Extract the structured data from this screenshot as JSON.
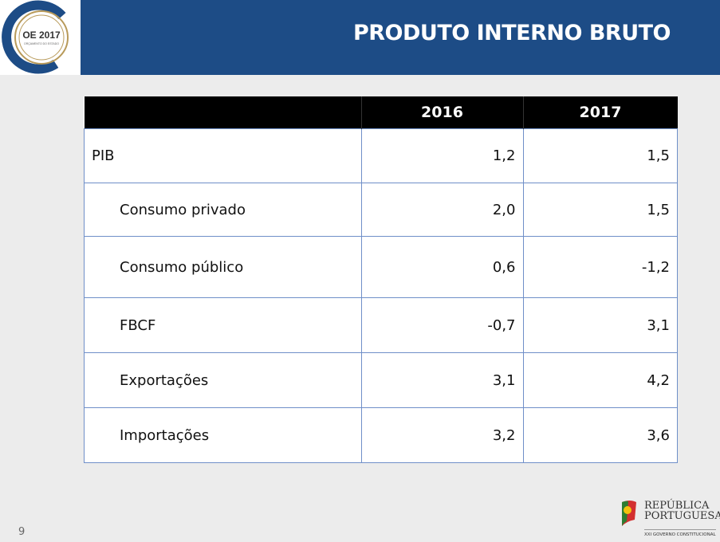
{
  "header": {
    "title": "PRODUTO INTERNO BRUTO"
  },
  "logo": {
    "text": "OE 2017",
    "subtitle": "ORÇAMENTO DO ESTADO"
  },
  "table": {
    "columns": [
      "",
      "2016",
      "2017"
    ],
    "rows": [
      {
        "label": "PIB",
        "v2016": "1,2",
        "v2017": "1,5",
        "indent": false
      },
      {
        "label": "Consumo privado",
        "v2016": "2,0",
        "v2017": "1,5",
        "indent": true
      },
      {
        "label": "Consumo público",
        "v2016": "0,6",
        "v2017": "-1,2",
        "indent": true
      },
      {
        "label": "FBCF",
        "v2016": "-0,7",
        "v2017": "3,1",
        "indent": true
      },
      {
        "label": "Exportações",
        "v2016": "3,1",
        "v2017": "4,2",
        "indent": true
      },
      {
        "label": "Importações",
        "v2016": "3,2",
        "v2017": "3,6",
        "indent": true
      }
    ]
  },
  "footer": {
    "page_number": "9",
    "brand_line1": "REPÚBLICA",
    "brand_line2": "PORTUGUESA",
    "brand_sub": "XXI GOVERNO CONSTITUCIONAL"
  }
}
